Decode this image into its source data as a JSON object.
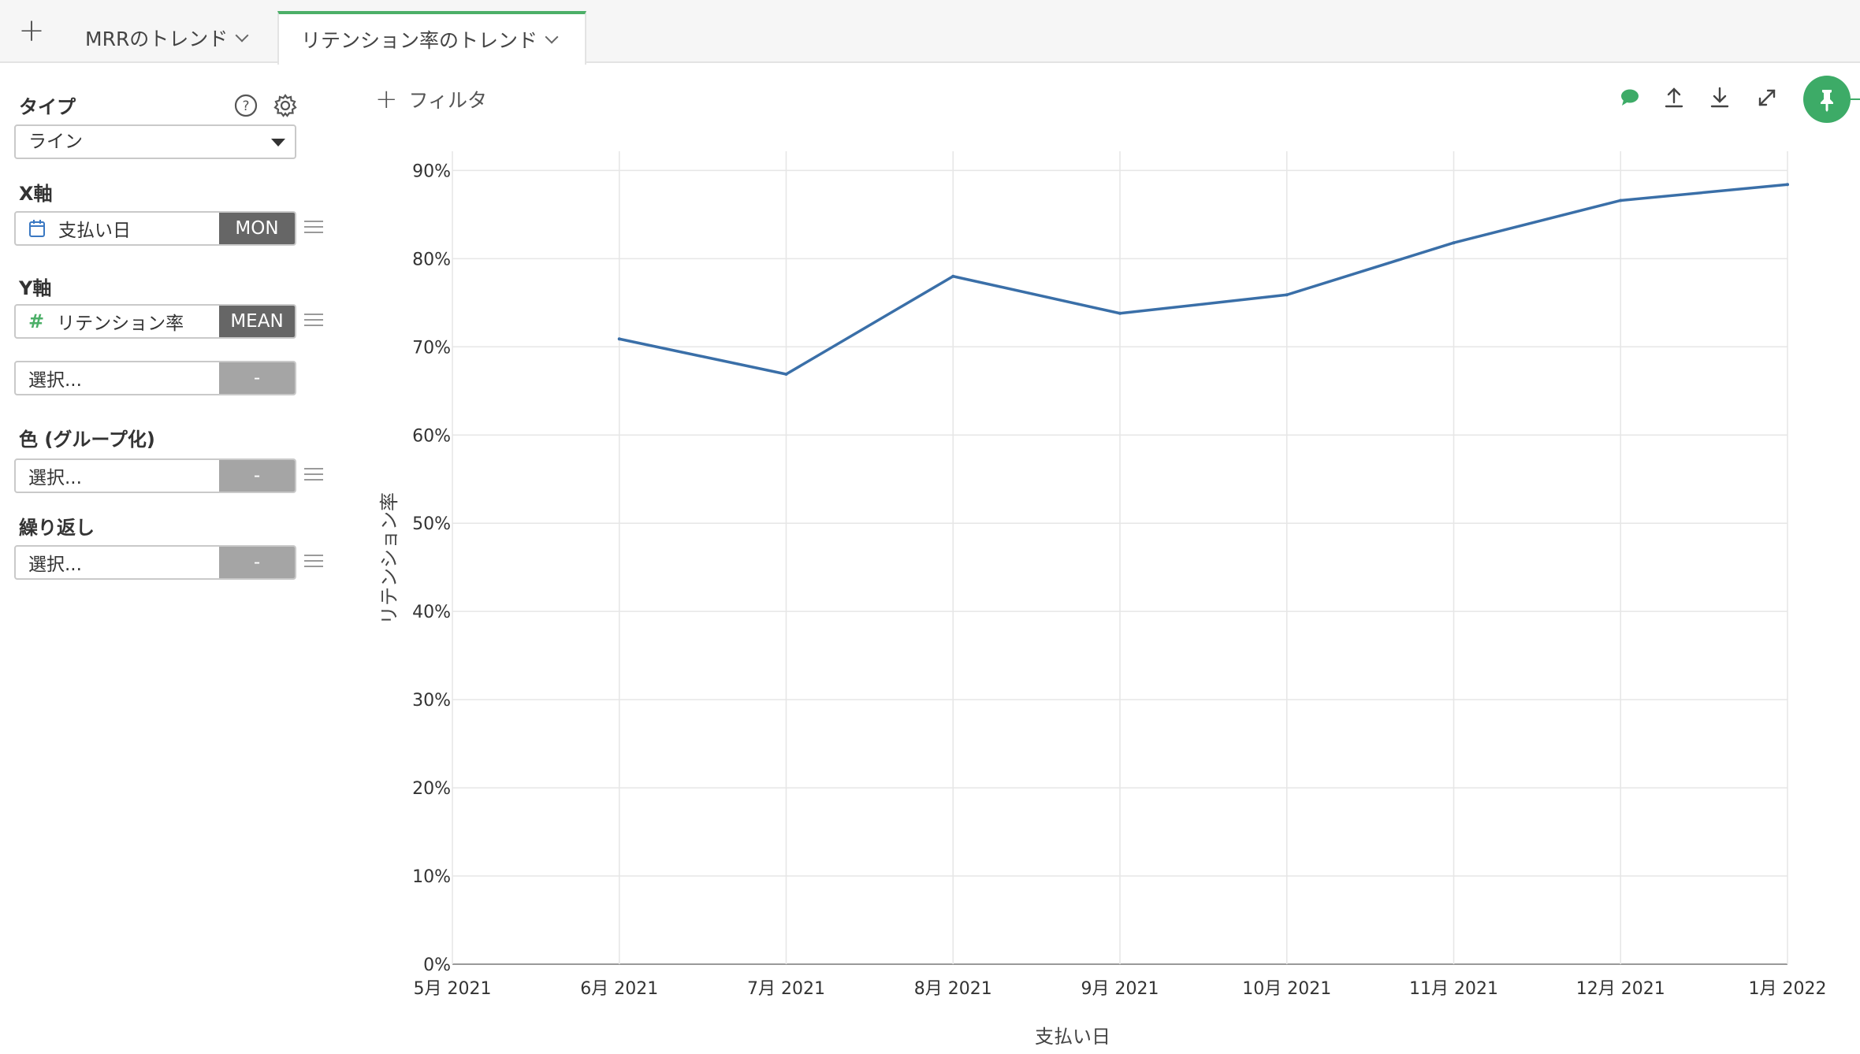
{
  "tabs": {
    "add_label": "+",
    "items": [
      {
        "label": "MRRのトレンド"
      },
      {
        "label": "リテンション率のトレンド",
        "active": true
      }
    ]
  },
  "panel": {
    "type_label": "タイプ",
    "type_value": "ライン",
    "x_axis_label": "X軸",
    "x_field": "支払い日",
    "x_agg": "MON",
    "y_axis_label": "Y軸",
    "y_field": "リテンション率",
    "y_agg": "MEAN",
    "y2_placeholder": "選択...",
    "y2_agg": "-",
    "color_label": "色 (グループ化)",
    "color_placeholder": "選択...",
    "color_agg": "-",
    "repeat_label": "繰り返し",
    "repeat_placeholder": "選択...",
    "repeat_agg": "-"
  },
  "toolbar": {
    "filter_label": "フィルタ",
    "accent_color": "#3dab67"
  },
  "chart_data": {
    "type": "line",
    "x": [
      "6月 2021",
      "7月 2021",
      "8月 2021",
      "9月 2021",
      "10月 2021",
      "11月 2021",
      "12月 2021",
      "1月 2022"
    ],
    "x_ticks": [
      "5月 2021",
      "6月 2021",
      "7月 2021",
      "8月 2021",
      "9月 2021",
      "10月 2021",
      "11月 2021",
      "12月 2021",
      "1月 2022"
    ],
    "y_ticks": [
      "0%",
      "10%",
      "20%",
      "30%",
      "40%",
      "50%",
      "60%",
      "70%",
      "80%",
      "90%"
    ],
    "series": [
      {
        "values": [
          70.9,
          66.9,
          78.0,
          73.8,
          75.9,
          81.8,
          86.6,
          88.4
        ],
        "color": "#3a6fa8"
      }
    ],
    "xlabel": "支払い日",
    "ylabel": "リテンション率",
    "ylim": [
      0,
      92
    ],
    "grid": true
  }
}
